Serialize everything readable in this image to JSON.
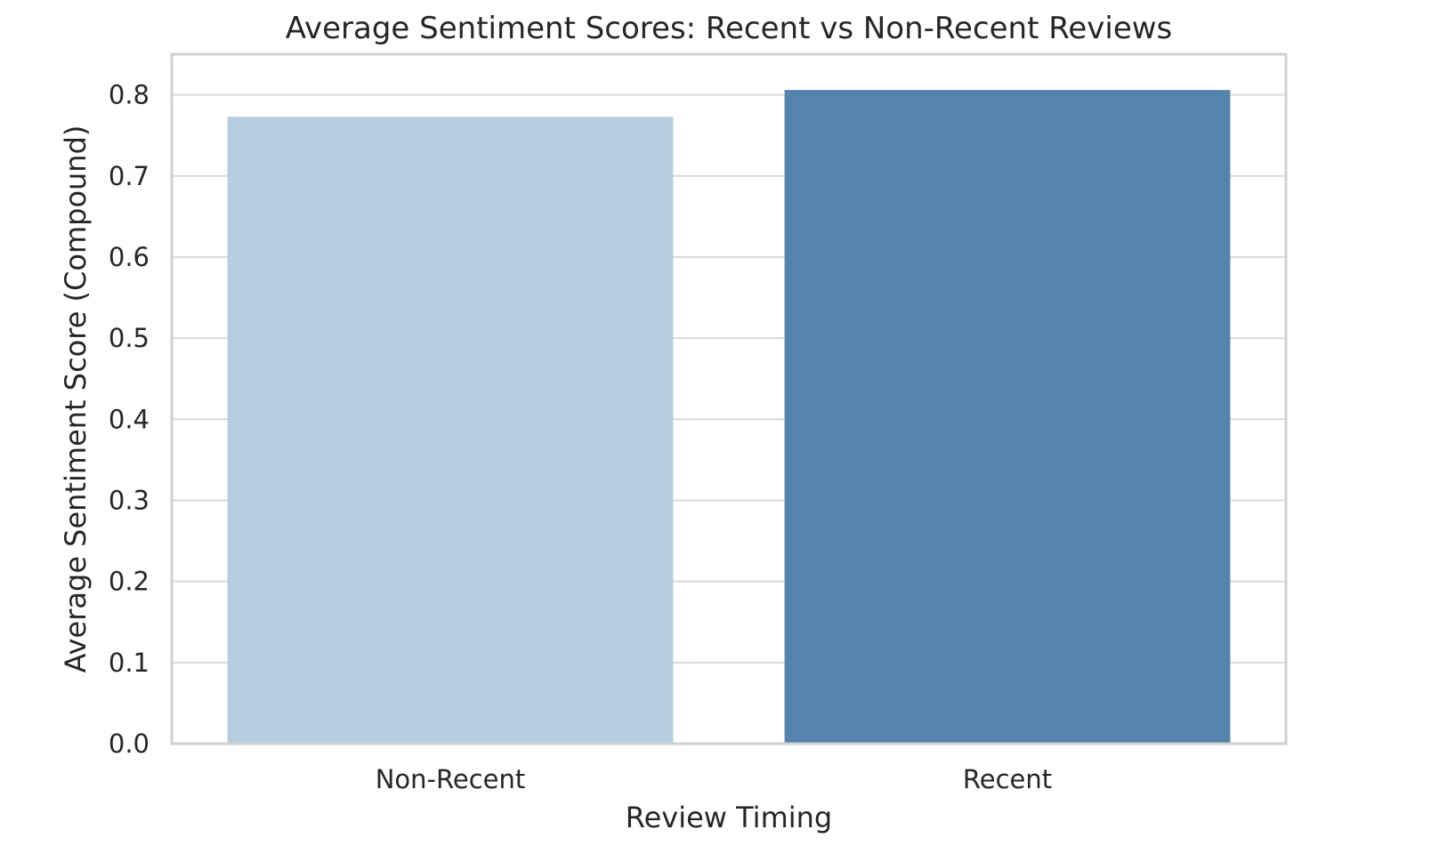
{
  "chart_data": {
    "type": "bar",
    "title": "Average Sentiment Scores: Recent vs Non-Recent Reviews",
    "xlabel": "Review Timing",
    "ylabel": "Average Sentiment Score (Compound)",
    "categories": [
      "Non-Recent",
      "Recent"
    ],
    "values": [
      0.773,
      0.806
    ],
    "colors": [
      "#b7ccdc",
      "#5683ab"
    ],
    "ylim": [
      0,
      0.85
    ],
    "yticks": [
      "0.0",
      "0.1",
      "0.2",
      "0.3",
      "0.4",
      "0.5",
      "0.6",
      "0.7",
      "0.8"
    ],
    "grid": true,
    "legend": "none"
  }
}
